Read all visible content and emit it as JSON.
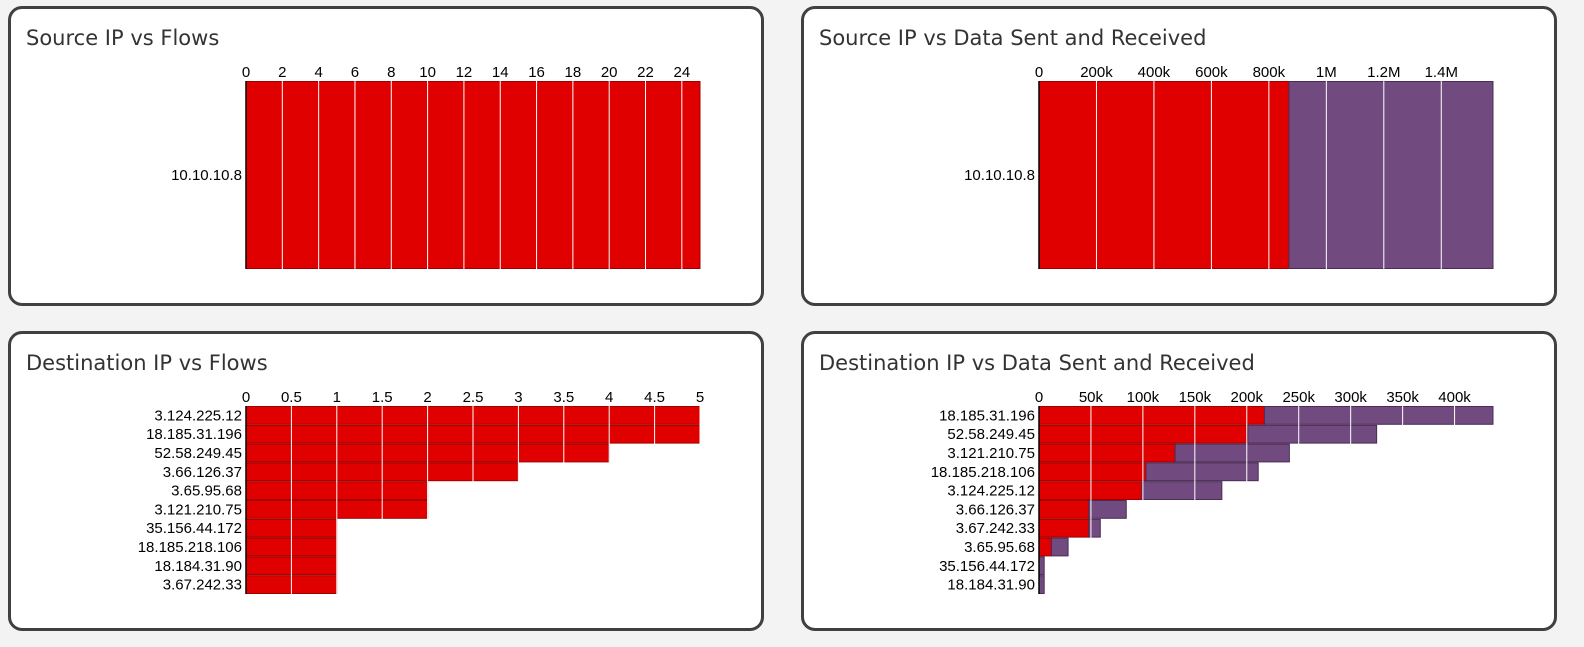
{
  "colors": {
    "sent": "#e00000",
    "received": "#714b7f",
    "gridline": "#ffffff"
  },
  "panels": [
    {
      "title": "Source IP vs Flows",
      "chart_data": {
        "type": "bar",
        "orientation": "horizontal",
        "stacked": false,
        "title": "Source IP vs Flows",
        "xlabel": "",
        "ylabel": "",
        "xlim": [
          0,
          25
        ],
        "ticks": [
          0,
          2,
          4,
          6,
          8,
          10,
          12,
          14,
          16,
          18,
          20,
          22,
          24
        ],
        "tick_labels": [
          "0",
          "2",
          "4",
          "6",
          "8",
          "10",
          "12",
          "14",
          "16",
          "18",
          "20",
          "22",
          "24"
        ],
        "axis_position": "top",
        "grid": true,
        "legend": "none",
        "categories": [
          "10.10.10.8"
        ],
        "series": [
          {
            "color": "#e00000",
            "values": [
              25
            ]
          }
        ]
      }
    },
    {
      "title": "Source IP vs Data Sent and Received",
      "chart_data": {
        "type": "bar",
        "orientation": "horizontal",
        "stacked": true,
        "title": "Source IP vs Data Sent and Received",
        "xlabel": "",
        "ylabel": "",
        "xlim": [
          0,
          1580000
        ],
        "ticks": [
          0,
          200000,
          400000,
          600000,
          800000,
          1000000,
          1200000,
          1400000
        ],
        "tick_labels": [
          "0",
          "200k",
          "400k",
          "600k",
          "800k",
          "1M",
          "1.2M",
          "1.4M"
        ],
        "axis_position": "top",
        "grid": true,
        "legend": "none",
        "categories": [
          "10.10.10.8"
        ],
        "series": [
          {
            "color": "#e00000",
            "values": [
              870000
            ]
          },
          {
            "color": "#714b7f",
            "values": [
              710000
            ]
          }
        ]
      }
    },
    {
      "title": "Destination IP vs Flows",
      "chart_data": {
        "type": "bar",
        "orientation": "horizontal",
        "stacked": false,
        "title": "Destination IP vs Flows",
        "xlabel": "",
        "ylabel": "",
        "xlim": [
          0,
          5
        ],
        "ticks": [
          0,
          0.5,
          1,
          1.5,
          2,
          2.5,
          3,
          3.5,
          4,
          4.5,
          5
        ],
        "tick_labels": [
          "0",
          "0.5",
          "1",
          "1.5",
          "2",
          "2.5",
          "3",
          "3.5",
          "4",
          "4.5",
          "5"
        ],
        "axis_position": "top",
        "grid": true,
        "legend": "none",
        "categories": [
          "3.124.225.12",
          "18.185.31.196",
          "52.58.249.45",
          "3.66.126.37",
          "3.65.95.68",
          "3.121.210.75",
          "35.156.44.172",
          "18.185.218.106",
          "18.184.31.90",
          "3.67.242.33"
        ],
        "series": [
          {
            "color": "#e00000",
            "values": [
              5,
              5,
              4,
              3,
              2,
              2,
              1,
              1,
              1,
              1
            ]
          }
        ]
      }
    },
    {
      "title": "Destination IP vs Data Sent and Received",
      "chart_data": {
        "type": "bar",
        "orientation": "horizontal",
        "stacked": true,
        "title": "Destination IP vs Data Sent and Received",
        "xlabel": "",
        "ylabel": "",
        "xlim": [
          0,
          437000
        ],
        "ticks": [
          0,
          50000,
          100000,
          150000,
          200000,
          250000,
          300000,
          350000,
          400000
        ],
        "tick_labels": [
          "0",
          "50k",
          "100k",
          "150k",
          "200k",
          "250k",
          "300k",
          "350k",
          "400k"
        ],
        "axis_position": "top",
        "grid": true,
        "legend": "none",
        "categories": [
          "18.185.31.196",
          "52.58.249.45",
          "3.121.210.75",
          "18.185.218.106",
          "3.124.225.12",
          "3.66.126.37",
          "3.67.242.33",
          "3.65.95.68",
          "35.156.44.172",
          "18.184.31.90"
        ],
        "series": [
          {
            "color": "#e00000",
            "values": [
              217000,
              201000,
              131000,
              103000,
              99000,
              48000,
              48000,
              12000,
              0,
              0
            ]
          },
          {
            "color": "#714b7f",
            "values": [
              220000,
              124000,
              110000,
              108000,
              77000,
              36000,
              11000,
              16000,
              5000,
              5000
            ]
          }
        ]
      }
    }
  ]
}
